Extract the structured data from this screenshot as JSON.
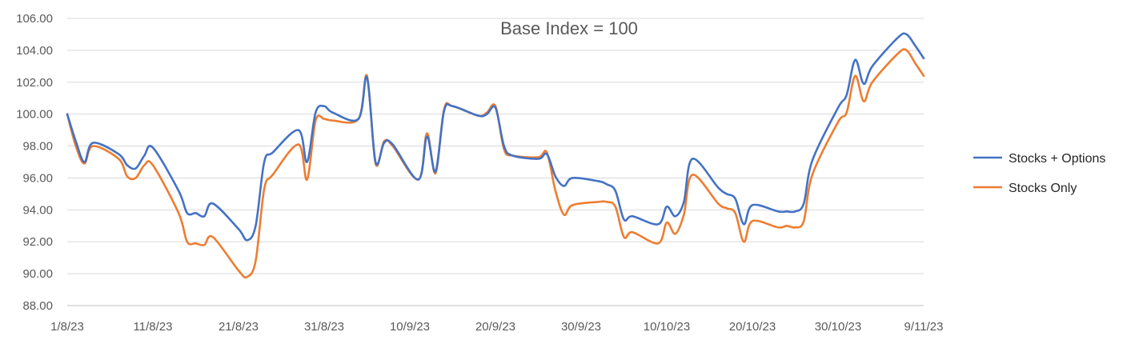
{
  "chart_data": {
    "type": "line",
    "title": "Base Index = 100",
    "xlabel": "",
    "ylabel": "",
    "ylim": [
      88,
      106
    ],
    "y_ticks": [
      "88.00",
      "90.00",
      "92.00",
      "94.00",
      "96.00",
      "98.00",
      "100.00",
      "102.00",
      "104.00",
      "106.00"
    ],
    "x_tick_labels": [
      "1/8/23",
      "11/8/23",
      "21/8/23",
      "31/8/23",
      "10/9/23",
      "20/9/23",
      "30/9/23",
      "10/10/23",
      "20/10/23",
      "30/10/23",
      "9/11/23"
    ],
    "x_start": "2023-08-01",
    "x_end": "2023-11-09",
    "grid": true,
    "legend_position": "right",
    "x": [
      "2023-08-01",
      "2023-08-02",
      "2023-08-03",
      "2023-08-04",
      "2023-08-07",
      "2023-08-08",
      "2023-08-09",
      "2023-08-10",
      "2023-08-11",
      "2023-08-14",
      "2023-08-15",
      "2023-08-16",
      "2023-08-17",
      "2023-08-18",
      "2023-08-21",
      "2023-08-22",
      "2023-08-23",
      "2023-08-24",
      "2023-08-25",
      "2023-08-28",
      "2023-08-29",
      "2023-08-30",
      "2023-08-31",
      "2023-09-01",
      "2023-09-04",
      "2023-09-05",
      "2023-09-06",
      "2023-09-07",
      "2023-09-08",
      "2023-09-11",
      "2023-09-12",
      "2023-09-13",
      "2023-09-14",
      "2023-09-15",
      "2023-09-18",
      "2023-09-19",
      "2023-09-20",
      "2023-09-21",
      "2023-09-22",
      "2023-09-25",
      "2023-09-26",
      "2023-09-27",
      "2023-09-28",
      "2023-09-29",
      "2023-10-02",
      "2023-10-03",
      "2023-10-04",
      "2023-10-05",
      "2023-10-06",
      "2023-10-09",
      "2023-10-10",
      "2023-10-11",
      "2023-10-12",
      "2023-10-13",
      "2023-10-16",
      "2023-10-17",
      "2023-10-18",
      "2023-10-19",
      "2023-10-20",
      "2023-10-23",
      "2023-10-24",
      "2023-10-25",
      "2023-10-26",
      "2023-10-27",
      "2023-10-30",
      "2023-10-31",
      "2023-11-01",
      "2023-11-02",
      "2023-11-03",
      "2023-11-06",
      "2023-11-07",
      "2023-11-08",
      "2023-11-09"
    ],
    "series": [
      {
        "name": "Stocks + Options",
        "color": "#4472c4",
        "values": [
          100.0,
          98.3,
          97.0,
          98.2,
          97.5,
          96.8,
          96.6,
          97.4,
          97.9,
          95.2,
          93.8,
          93.8,
          93.6,
          94.4,
          92.8,
          92.1,
          93.0,
          97.0,
          97.6,
          99.0,
          97.0,
          100.1,
          100.5,
          100.1,
          99.7,
          102.3,
          97.0,
          98.2,
          98.1,
          95.9,
          98.6,
          96.4,
          100.2,
          100.5,
          99.9,
          100.0,
          100.4,
          98.0,
          97.4,
          97.2,
          97.5,
          96.1,
          95.5,
          96.0,
          95.8,
          95.6,
          95.2,
          93.4,
          93.6,
          93.1,
          94.2,
          93.6,
          94.5,
          97.2,
          95.4,
          95.0,
          94.7,
          93.1,
          94.3,
          93.9,
          93.9,
          93.9,
          94.4,
          97.1,
          100.4,
          101.2,
          103.4,
          101.9,
          103.0,
          104.8,
          105.0,
          104.3,
          103.5
        ]
      },
      {
        "name": "Stocks Only",
        "color": "#ed7d31",
        "values": [
          100.0,
          98.0,
          96.9,
          98.0,
          97.2,
          96.1,
          96.0,
          96.8,
          96.8,
          93.8,
          92.0,
          91.9,
          91.8,
          92.3,
          90.2,
          89.8,
          90.8,
          95.3,
          96.2,
          98.1,
          95.9,
          99.6,
          99.7,
          99.6,
          99.7,
          102.4,
          96.9,
          98.3,
          98.0,
          95.9,
          98.8,
          96.3,
          100.3,
          100.5,
          99.9,
          100.1,
          100.5,
          97.8,
          97.4,
          97.3,
          97.6,
          95.2,
          93.7,
          94.3,
          94.5,
          94.5,
          94.2,
          92.3,
          92.6,
          91.9,
          93.2,
          92.5,
          93.7,
          96.2,
          94.4,
          94.1,
          93.8,
          92.0,
          93.3,
          92.9,
          93.0,
          92.9,
          93.3,
          96.2,
          99.5,
          100.1,
          102.4,
          100.8,
          102.0,
          103.8,
          104.0,
          103.2,
          102.4
        ]
      }
    ]
  }
}
